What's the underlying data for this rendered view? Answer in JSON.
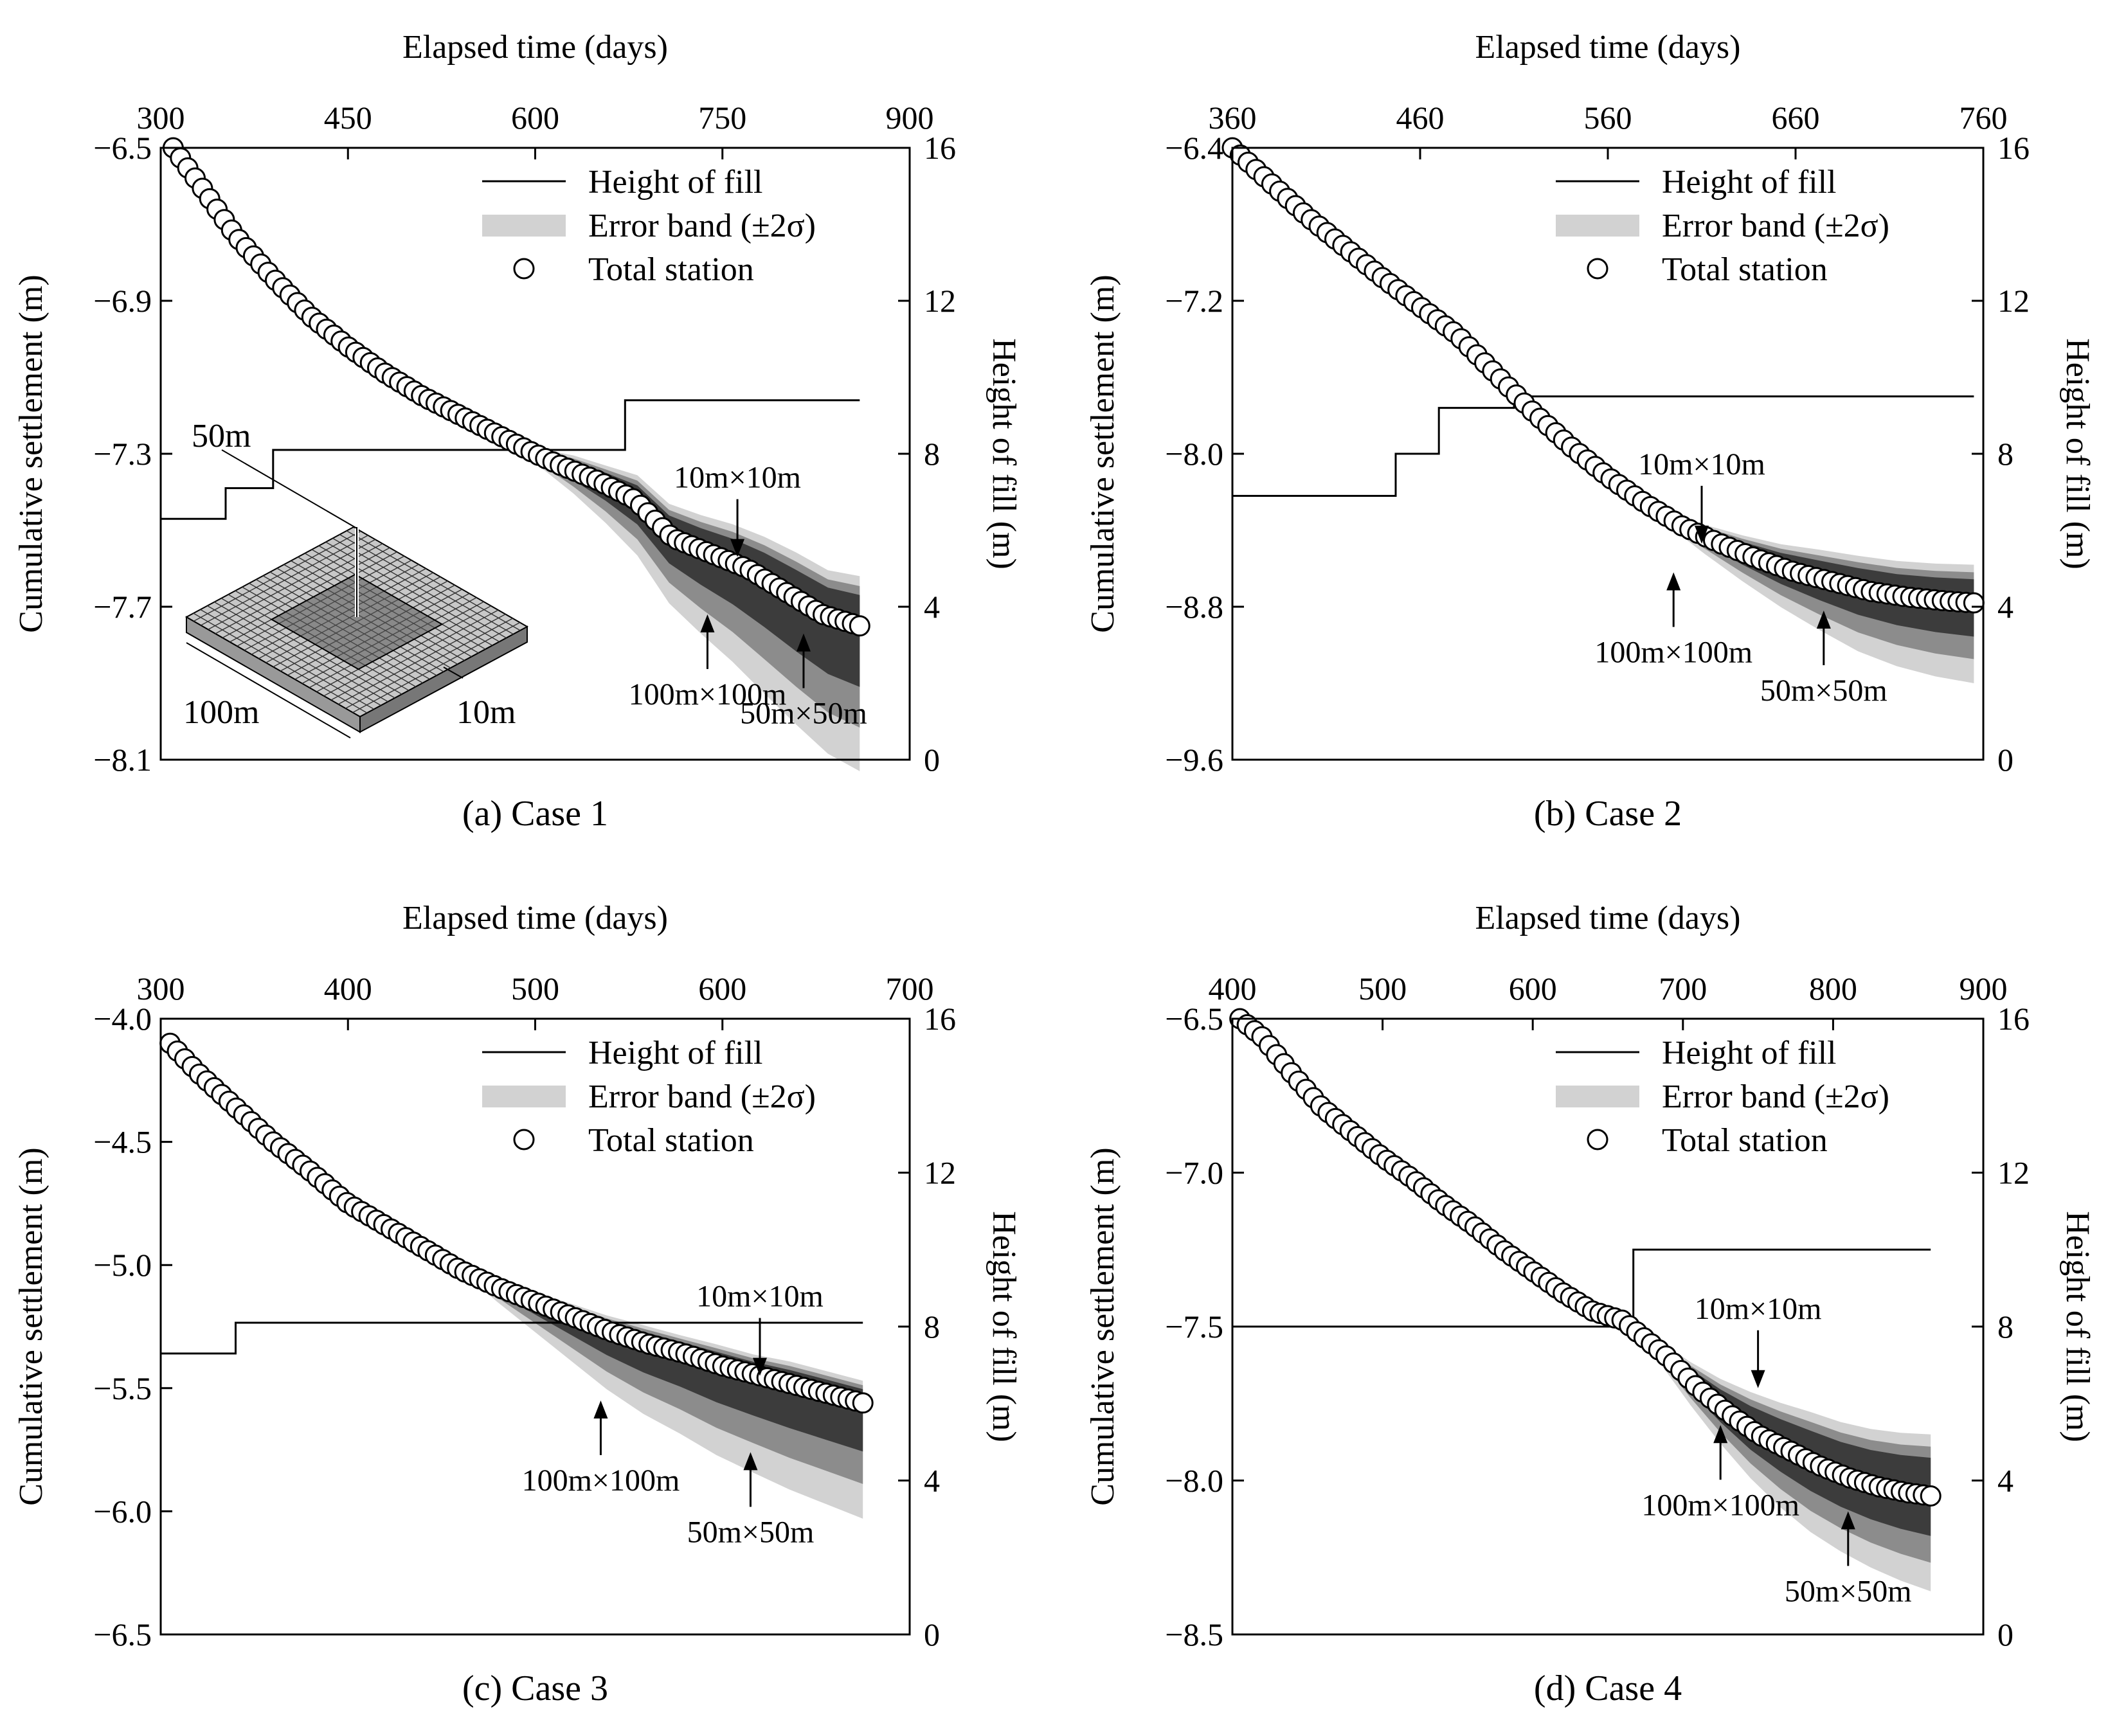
{
  "figure": {
    "legend_labels": [
      "Height of fill",
      "Error band (±2σ)",
      "Total station"
    ],
    "top_axis_label": "Elapsed time (days)",
    "left_axis_label": "Cumulative settlement (m)",
    "right_axis_label": "Height of fill (m)",
    "colors": {
      "band_outer": "#d2d2d2",
      "band_mid": "#8c8c8c",
      "band_inner": "#3c3c3c",
      "marker_fill": "#ffffff",
      "line": "#000000"
    }
  },
  "chart_data": [
    {
      "type": "line",
      "caption": "(a) Case 1",
      "xlabel": "Elapsed time (days)",
      "ylabel": "Cumulative settlement (m)",
      "y2label": "Height of fill (m)",
      "xlim": [
        300,
        900
      ],
      "xticks": [
        300,
        450,
        600,
        750,
        900
      ],
      "ylim": [
        -8.1,
        -6.5
      ],
      "yticks": [
        -6.5,
        -6.9,
        -7.3,
        -7.7,
        -8.1
      ],
      "y2lim": [
        0,
        16
      ],
      "y2ticks": [
        0,
        4,
        8,
        12,
        16
      ],
      "grid": false,
      "legend_position": "top-right",
      "fill_height": {
        "x": [
          300,
          352,
          352,
          390,
          390,
          672,
          672,
          860
        ],
        "y": [
          6.3,
          6.3,
          7.1,
          7.1,
          8.1,
          8.1,
          9.4,
          9.4
        ]
      },
      "settlement_curve": {
        "x": [
          310,
          330,
          360,
          390,
          420,
          450,
          480,
          510,
          540,
          570,
          600,
          620,
          650,
          680,
          710,
          740,
          770,
          800,
          830,
          860
        ],
        "y": [
          -6.5,
          -6.59,
          -6.73,
          -6.84,
          -6.94,
          -7.02,
          -7.09,
          -7.15,
          -7.2,
          -7.25,
          -7.3,
          -7.33,
          -7.37,
          -7.42,
          -7.52,
          -7.56,
          -7.6,
          -7.66,
          -7.72,
          -7.75
        ]
      },
      "band_start_x": 580,
      "error_band_upper": [
        0.0,
        0.02,
        0.04,
        0.05,
        0.07,
        0.08,
        0.09,
        0.1,
        0.11,
        0.12,
        0.12,
        0.13
      ],
      "error_band_lower": [
        0.0,
        0.03,
        0.06,
        0.1,
        0.14,
        0.18,
        0.22,
        0.26,
        0.3,
        0.33,
        0.36,
        0.38
      ],
      "inset_labels": [
        "50m",
        "100m",
        "10m"
      ],
      "annotations": [
        {
          "label": "10m×10m",
          "x": 762,
          "y": -7.57,
          "direction": "down"
        },
        {
          "label": "100m×100m",
          "x": 738,
          "y": -7.72,
          "direction": "up"
        },
        {
          "label": "50m×50m",
          "x": 815,
          "y": -7.77,
          "direction": "up"
        }
      ]
    },
    {
      "type": "line",
      "caption": "(b) Case 2",
      "xlabel": "Elapsed time (days)",
      "ylabel": "Cumulative settlement (m)",
      "y2label": "Height of fill (m)",
      "xlim": [
        360,
        760
      ],
      "xticks": [
        360,
        460,
        560,
        660,
        760
      ],
      "ylim": [
        -9.6,
        -6.4
      ],
      "yticks": [
        -6.4,
        -7.2,
        -8.0,
        -8.8,
        -9.6
      ],
      "y2lim": [
        0,
        16
      ],
      "y2ticks": [
        0,
        4,
        8,
        12,
        16
      ],
      "grid": false,
      "legend_position": "top-right",
      "fill_height": {
        "x": [
          360,
          447,
          447,
          470,
          470,
          510,
          510,
          755
        ],
        "y": [
          6.9,
          6.9,
          8.0,
          8.0,
          9.2,
          9.2,
          9.5,
          9.5
        ]
      },
      "settlement_curve": {
        "x": [
          360,
          380,
          400,
          420,
          440,
          460,
          480,
          500,
          520,
          540,
          560,
          580,
          600,
          620,
          640,
          660,
          680,
          700,
          720,
          740,
          755
        ],
        "y": [
          -6.4,
          -6.58,
          -6.76,
          -6.92,
          -7.08,
          -7.23,
          -7.38,
          -7.58,
          -7.78,
          -7.96,
          -8.12,
          -8.26,
          -8.38,
          -8.47,
          -8.55,
          -8.62,
          -8.67,
          -8.72,
          -8.75,
          -8.77,
          -8.78
        ]
      },
      "band_start_x": 570,
      "error_band_upper": [
        0.0,
        0.03,
        0.06,
        0.09,
        0.12,
        0.15,
        0.17,
        0.18,
        0.19,
        0.2
      ],
      "error_band_lower": [
        0.0,
        0.04,
        0.09,
        0.15,
        0.21,
        0.27,
        0.33,
        0.37,
        0.4,
        0.42
      ],
      "annotations": [
        {
          "label": "10m×10m",
          "x": 610,
          "y": -8.47,
          "direction": "down"
        },
        {
          "label": "100m×100m",
          "x": 595,
          "y": -8.62,
          "direction": "up"
        },
        {
          "label": "50m×50m",
          "x": 675,
          "y": -8.82,
          "direction": "up"
        }
      ]
    },
    {
      "type": "line",
      "caption": "(c) Case 3",
      "xlabel": "Elapsed time (days)",
      "ylabel": "Cumulative settlement (m)",
      "y2label": "Height of fill (m)",
      "xlim": [
        300,
        700
      ],
      "xticks": [
        300,
        400,
        500,
        600,
        700
      ],
      "ylim": [
        -6.5,
        -4.0
      ],
      "yticks": [
        -4.0,
        -4.5,
        -5.0,
        -5.5,
        -6.0,
        -6.5
      ],
      "y2lim": [
        0,
        16
      ],
      "y2ticks": [
        0,
        4,
        8,
        12,
        16
      ],
      "grid": false,
      "legend_position": "top-right",
      "fill_height": {
        "x": [
          300,
          340,
          340,
          675
        ],
        "y": [
          7.3,
          7.3,
          8.1,
          8.1
        ]
      },
      "settlement_curve": {
        "x": [
          305,
          320,
          340,
          360,
          380,
          400,
          420,
          440,
          460,
          480,
          500,
          520,
          540,
          560,
          580,
          600,
          620,
          640,
          660,
          675
        ],
        "y": [
          -4.1,
          -4.22,
          -4.36,
          -4.5,
          -4.62,
          -4.75,
          -4.84,
          -4.93,
          -5.02,
          -5.09,
          -5.15,
          -5.21,
          -5.27,
          -5.32,
          -5.36,
          -5.41,
          -5.45,
          -5.49,
          -5.53,
          -5.56
        ]
      },
      "band_start_x": 460,
      "error_band_upper": [
        0.0,
        0.02,
        0.04,
        0.05,
        0.06,
        0.07,
        0.07,
        0.08,
        0.08,
        0.09,
        0.09,
        0.09
      ],
      "error_band_lower": [
        0.0,
        0.06,
        0.12,
        0.18,
        0.24,
        0.29,
        0.33,
        0.37,
        0.4,
        0.43,
        0.45,
        0.47
      ],
      "annotations": [
        {
          "label": "10m×10m",
          "x": 620,
          "y": -5.45,
          "direction": "down"
        },
        {
          "label": "100m×100m",
          "x": 535,
          "y": -5.55,
          "direction": "up"
        },
        {
          "label": "50m×50m",
          "x": 615,
          "y": -5.76,
          "direction": "up"
        }
      ]
    },
    {
      "type": "line",
      "caption": "(d) Case 4",
      "xlabel": "Elapsed time (days)",
      "ylabel": "Cumulative settlement (m)",
      "y2label": "Height of fill (m)",
      "xlim": [
        400,
        900
      ],
      "xticks": [
        400,
        500,
        600,
        700,
        800,
        900
      ],
      "ylim": [
        -8.5,
        -6.5
      ],
      "yticks": [
        -6.5,
        -7.0,
        -7.5,
        -8.0,
        -8.5
      ],
      "y2lim": [
        0,
        16
      ],
      "y2ticks": [
        0,
        4,
        8,
        12,
        16
      ],
      "grid": false,
      "legend_position": "top-right",
      "fill_height": {
        "x": [
          400,
          667,
          667,
          865
        ],
        "y": [
          8.0,
          8.0,
          10.0,
          10.0
        ]
      },
      "settlement_curve": {
        "x": [
          405,
          420,
          440,
          460,
          480,
          500,
          520,
          540,
          560,
          580,
          600,
          620,
          640,
          660,
          670,
          690,
          710,
          730,
          750,
          770,
          790,
          810,
          830,
          850,
          865
        ],
        "y": [
          -6.5,
          -6.56,
          -6.68,
          -6.79,
          -6.87,
          -6.95,
          -7.02,
          -7.1,
          -7.17,
          -7.25,
          -7.32,
          -7.39,
          -7.45,
          -7.48,
          -7.52,
          -7.6,
          -7.7,
          -7.78,
          -7.85,
          -7.9,
          -7.95,
          -7.99,
          -8.02,
          -8.04,
          -8.05
        ]
      },
      "band_start_x": 665,
      "error_band_upper": [
        0.0,
        0.03,
        0.06,
        0.09,
        0.12,
        0.14,
        0.16,
        0.17,
        0.18,
        0.19,
        0.2
      ],
      "error_band_lower": [
        0.0,
        0.04,
        0.08,
        0.12,
        0.16,
        0.2,
        0.23,
        0.25,
        0.27,
        0.29,
        0.31
      ],
      "annotations": [
        {
          "label": "10m×10m",
          "x": 750,
          "y": -7.7,
          "direction": "down"
        },
        {
          "label": "100m×100m",
          "x": 725,
          "y": -7.82,
          "direction": "up"
        },
        {
          "label": "50m×50m",
          "x": 810,
          "y": -8.1,
          "direction": "up"
        }
      ]
    }
  ]
}
